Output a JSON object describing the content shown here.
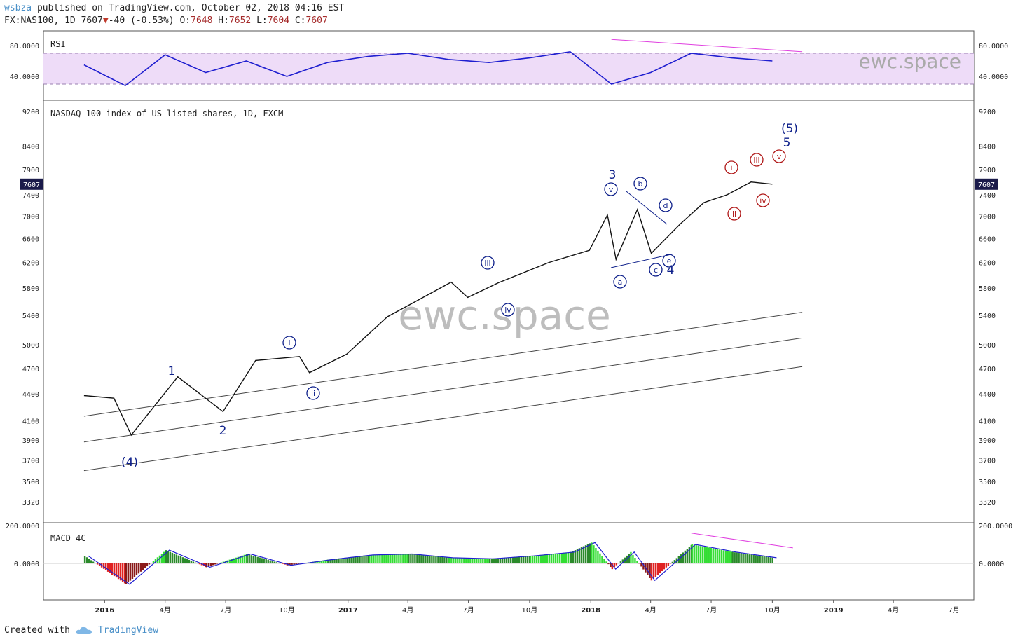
{
  "header": {
    "user": "wsbza",
    "published": "published on TradingView.com, October 02, 2018 04:16 EST",
    "symbol": "FX:NAS100, 1D 7607",
    "change": "-40 (-0.53%)",
    "o_label": "O:",
    "o_val": "7648",
    "h_label": "H:",
    "h_val": "7652",
    "l_label": "L:",
    "l_val": "7604",
    "c_label": "C:",
    "c_val": "7607"
  },
  "footer": {
    "created": "Created with",
    "brand": "TradingView"
  },
  "watermark": "ewc.space",
  "colors": {
    "price": "#111111",
    "rsi": "#1f1fd0",
    "rsi_band": "#eedcf8",
    "divergence": "#e040e0",
    "wave_blue": "#0d1f8a",
    "wave_red": "#b01818",
    "macd_up": "#33dd33",
    "macd_up_dark": "#2b8a2b",
    "macd_down": "#e02222",
    "macd_down_dark": "#8a1a1a",
    "macd_signal": "#1f1fd0",
    "channel": "#444444"
  },
  "chart_data": [
    {
      "type": "line",
      "title": "RSI",
      "y_ticks": [
        "80.0000",
        "40.0000"
      ],
      "band": [
        30,
        70
      ],
      "x": [
        "2015-12",
        "2016-02",
        "2016-04",
        "2016-06",
        "2016-08",
        "2016-10",
        "2016-12",
        "2017-02",
        "2017-04",
        "2017-06",
        "2017-08",
        "2017-10",
        "2017-12",
        "2018-02",
        "2018-04",
        "2018-06",
        "2018-08",
        "2018-10"
      ],
      "values": [
        55,
        28,
        68,
        45,
        60,
        40,
        58,
        66,
        70,
        62,
        58,
        64,
        72,
        30,
        45,
        70,
        64,
        60
      ]
    },
    {
      "type": "line",
      "title": "NASDAQ 100 index of US listed shares, 1D, FXCM",
      "y_ticks": [
        "9200",
        "8400",
        "7900",
        "7400",
        "7000",
        "6600",
        "6200",
        "5800",
        "5400",
        "5000",
        "4700",
        "4400",
        "4100",
        "3900",
        "3700",
        "3500",
        "3320"
      ],
      "x_ticks": [
        "2016",
        "4月",
        "7月",
        "10月",
        "2017",
        "4月",
        "7月",
        "10月",
        "2018",
        "4月",
        "7月",
        "10月",
        "2019",
        "4月",
        "7月"
      ],
      "last_price": "7607",
      "points": [
        [
          "2015-12-01",
          4380
        ],
        [
          "2016-01-15",
          4350
        ],
        [
          "2016-02-10",
          3950
        ],
        [
          "2016-04-20",
          4600
        ],
        [
          "2016-06-27",
          4200
        ],
        [
          "2016-08-15",
          4800
        ],
        [
          "2016-10-20",
          4850
        ],
        [
          "2016-11-04",
          4650
        ],
        [
          "2016-12-30",
          4880
        ],
        [
          "2017-03-01",
          5380
        ],
        [
          "2017-06-05",
          5890
        ],
        [
          "2017-06-30",
          5660
        ],
        [
          "2017-08-15",
          5880
        ],
        [
          "2017-10-30",
          6200
        ],
        [
          "2017-12-30",
          6400
        ],
        [
          "2018-01-26",
          7020
        ],
        [
          "2018-02-08",
          6250
        ],
        [
          "2018-03-12",
          7120
        ],
        [
          "2018-04-02",
          6350
        ],
        [
          "2018-05-15",
          6850
        ],
        [
          "2018-06-20",
          7250
        ],
        [
          "2018-07-25",
          7400
        ],
        [
          "2018-08-30",
          7650
        ],
        [
          "2018-10-01",
          7607
        ]
      ],
      "wave_labels": [
        "(4)",
        "1",
        "2",
        "i",
        "ii",
        "iii",
        "iv",
        "v",
        "3",
        "a",
        "b",
        "c",
        "d",
        "e",
        "4",
        "i",
        "ii",
        "iii",
        "iv",
        "v",
        "5",
        "(5)"
      ]
    },
    {
      "type": "bar",
      "title": "MACD 4C",
      "y_ticks": [
        "200.0000",
        "0.0000"
      ],
      "x": [
        "2015-12",
        "2016-02",
        "2016-04",
        "2016-06",
        "2016-08",
        "2016-10",
        "2016-12",
        "2017-02",
        "2017-04",
        "2017-06",
        "2017-08",
        "2017-10",
        "2017-12",
        "2018-01",
        "2018-02",
        "2018-03",
        "2018-04",
        "2018-06",
        "2018-08",
        "2018-10"
      ],
      "values": [
        40,
        -110,
        70,
        -20,
        50,
        -10,
        20,
        45,
        50,
        30,
        25,
        40,
        60,
        110,
        -30,
        60,
        -90,
        100,
        60,
        30
      ]
    }
  ]
}
